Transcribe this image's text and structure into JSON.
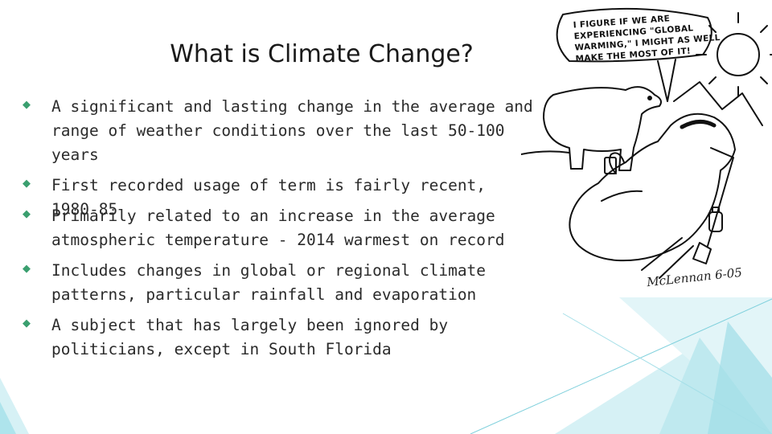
{
  "slide": {
    "title": "What is Climate Change?",
    "bullets": [
      {
        "text": "A significant and lasting change in the average and\nrange of weather conditions over the last 50-100\nyears"
      },
      {
        "text": "First recorded usage of term is fairly recent, 1980-85"
      },
      {
        "text": "Primarily related to an increase in the average\natmospheric temperature - 2014 warmest on record"
      },
      {
        "text": "Includes changes in global or regional climate\npatterns, particular rainfall and evaporation"
      },
      {
        "text": "A subject that has largely been ignored by\npoliticians, except in South Florida"
      }
    ],
    "bullet_color": "#3a9f6f"
  },
  "cartoon": {
    "caption": "I figure if we are experiencing \"global warming,\" I might as well make the most of it!",
    "signature": "McLennan 6-05"
  },
  "colors": {
    "accent_green": "#3a9f6f",
    "accent_light_blue": "#aee4ec",
    "accent_teal": "#5ec8d6"
  }
}
